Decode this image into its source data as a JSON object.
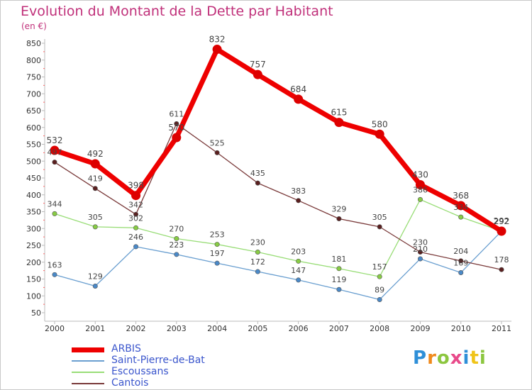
{
  "title": "Evolution du Montant de la Dette par Habitant",
  "unit": "(en €)",
  "logo": {
    "letters": [
      {
        "ch": "P",
        "color": "#2e8fd8"
      },
      {
        "ch": "r",
        "color": "#f08a1c"
      },
      {
        "ch": "o",
        "color": "#8cc63f"
      },
      {
        "ch": "x",
        "color": "#e84a8a"
      },
      {
        "ch": "i",
        "color": "#2e8fd8"
      },
      {
        "ch": "t",
        "color": "#f0c419"
      },
      {
        "ch": "i",
        "color": "#8cc63f"
      }
    ]
  },
  "chart_data": {
    "type": "line",
    "x": [
      "2000",
      "2001",
      "2002",
      "2003",
      "2004",
      "2005",
      "2006",
      "2007",
      "2008",
      "2009",
      "2010",
      "2011"
    ],
    "y_ticks": [
      50,
      100,
      150,
      200,
      250,
      300,
      350,
      400,
      450,
      500,
      550,
      600,
      650,
      700,
      750,
      800,
      850
    ],
    "ylim": [
      50,
      850
    ],
    "grid": false,
    "legend_position": "bottom-left",
    "series": [
      {
        "name": "Saint-Pierre-de-Bat",
        "color": "#6a9fd0",
        "marker": "#4a89c8",
        "values": [
          163,
          129,
          246,
          223,
          197,
          172,
          147,
          119,
          89,
          210,
          169,
          292
        ]
      },
      {
        "name": "Escoussans",
        "color": "#99dd77",
        "marker": "#88cc44",
        "values": [
          344,
          305,
          302,
          270,
          253,
          230,
          203,
          181,
          157,
          386,
          334,
          292
        ]
      },
      {
        "name": "Cantois",
        "color": "#7a3a3a",
        "marker": "#5a1f1f",
        "values": [
          497,
          419,
          342,
          611,
          525,
          435,
          383,
          329,
          305,
          230,
          204,
          178
        ]
      },
      {
        "name": "ARBIS",
        "color": "#ee0000",
        "marker": "#dd0000",
        "values": [
          532,
          492,
          398,
          570,
          832,
          757,
          684,
          615,
          580,
          430,
          368,
          292
        ]
      }
    ]
  }
}
